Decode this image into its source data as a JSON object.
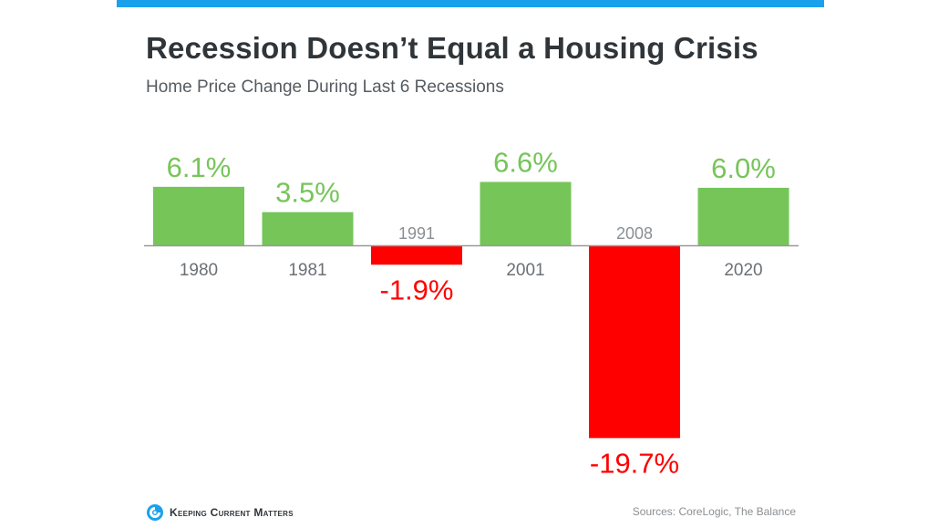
{
  "header": {
    "title": "Recession Doesn’t Equal a Housing Crisis",
    "subtitle": "Home Price Change During Last 6 Recessions"
  },
  "footer": {
    "brand": "Keeping Current Matters",
    "sources": "Sources: CoreLogic, The Balance"
  },
  "colors": {
    "accent_bar": "#1ba1ec",
    "positive": "#76c559",
    "negative": "#ff0000",
    "axis": "#999999"
  },
  "icons": {
    "logo": "kcm-swirl-logo-icon"
  },
  "chart_data": {
    "type": "bar",
    "categories": [
      "1980",
      "1981",
      "1991",
      "2001",
      "2008",
      "2020"
    ],
    "values": [
      6.1,
      3.5,
      -1.9,
      6.6,
      -19.7,
      6.0
    ],
    "data_labels": [
      "6.1%",
      "3.5%",
      "-1.9%",
      "6.6%",
      "-19.7%",
      "6.0%"
    ],
    "title": "Recession Doesn’t Equal a Housing Crisis",
    "subtitle": "Home Price Change During Last 6 Recessions",
    "xlabel": "",
    "ylabel": "",
    "ylim": [
      -19.7,
      6.6
    ],
    "grid": false,
    "legend": "none"
  }
}
